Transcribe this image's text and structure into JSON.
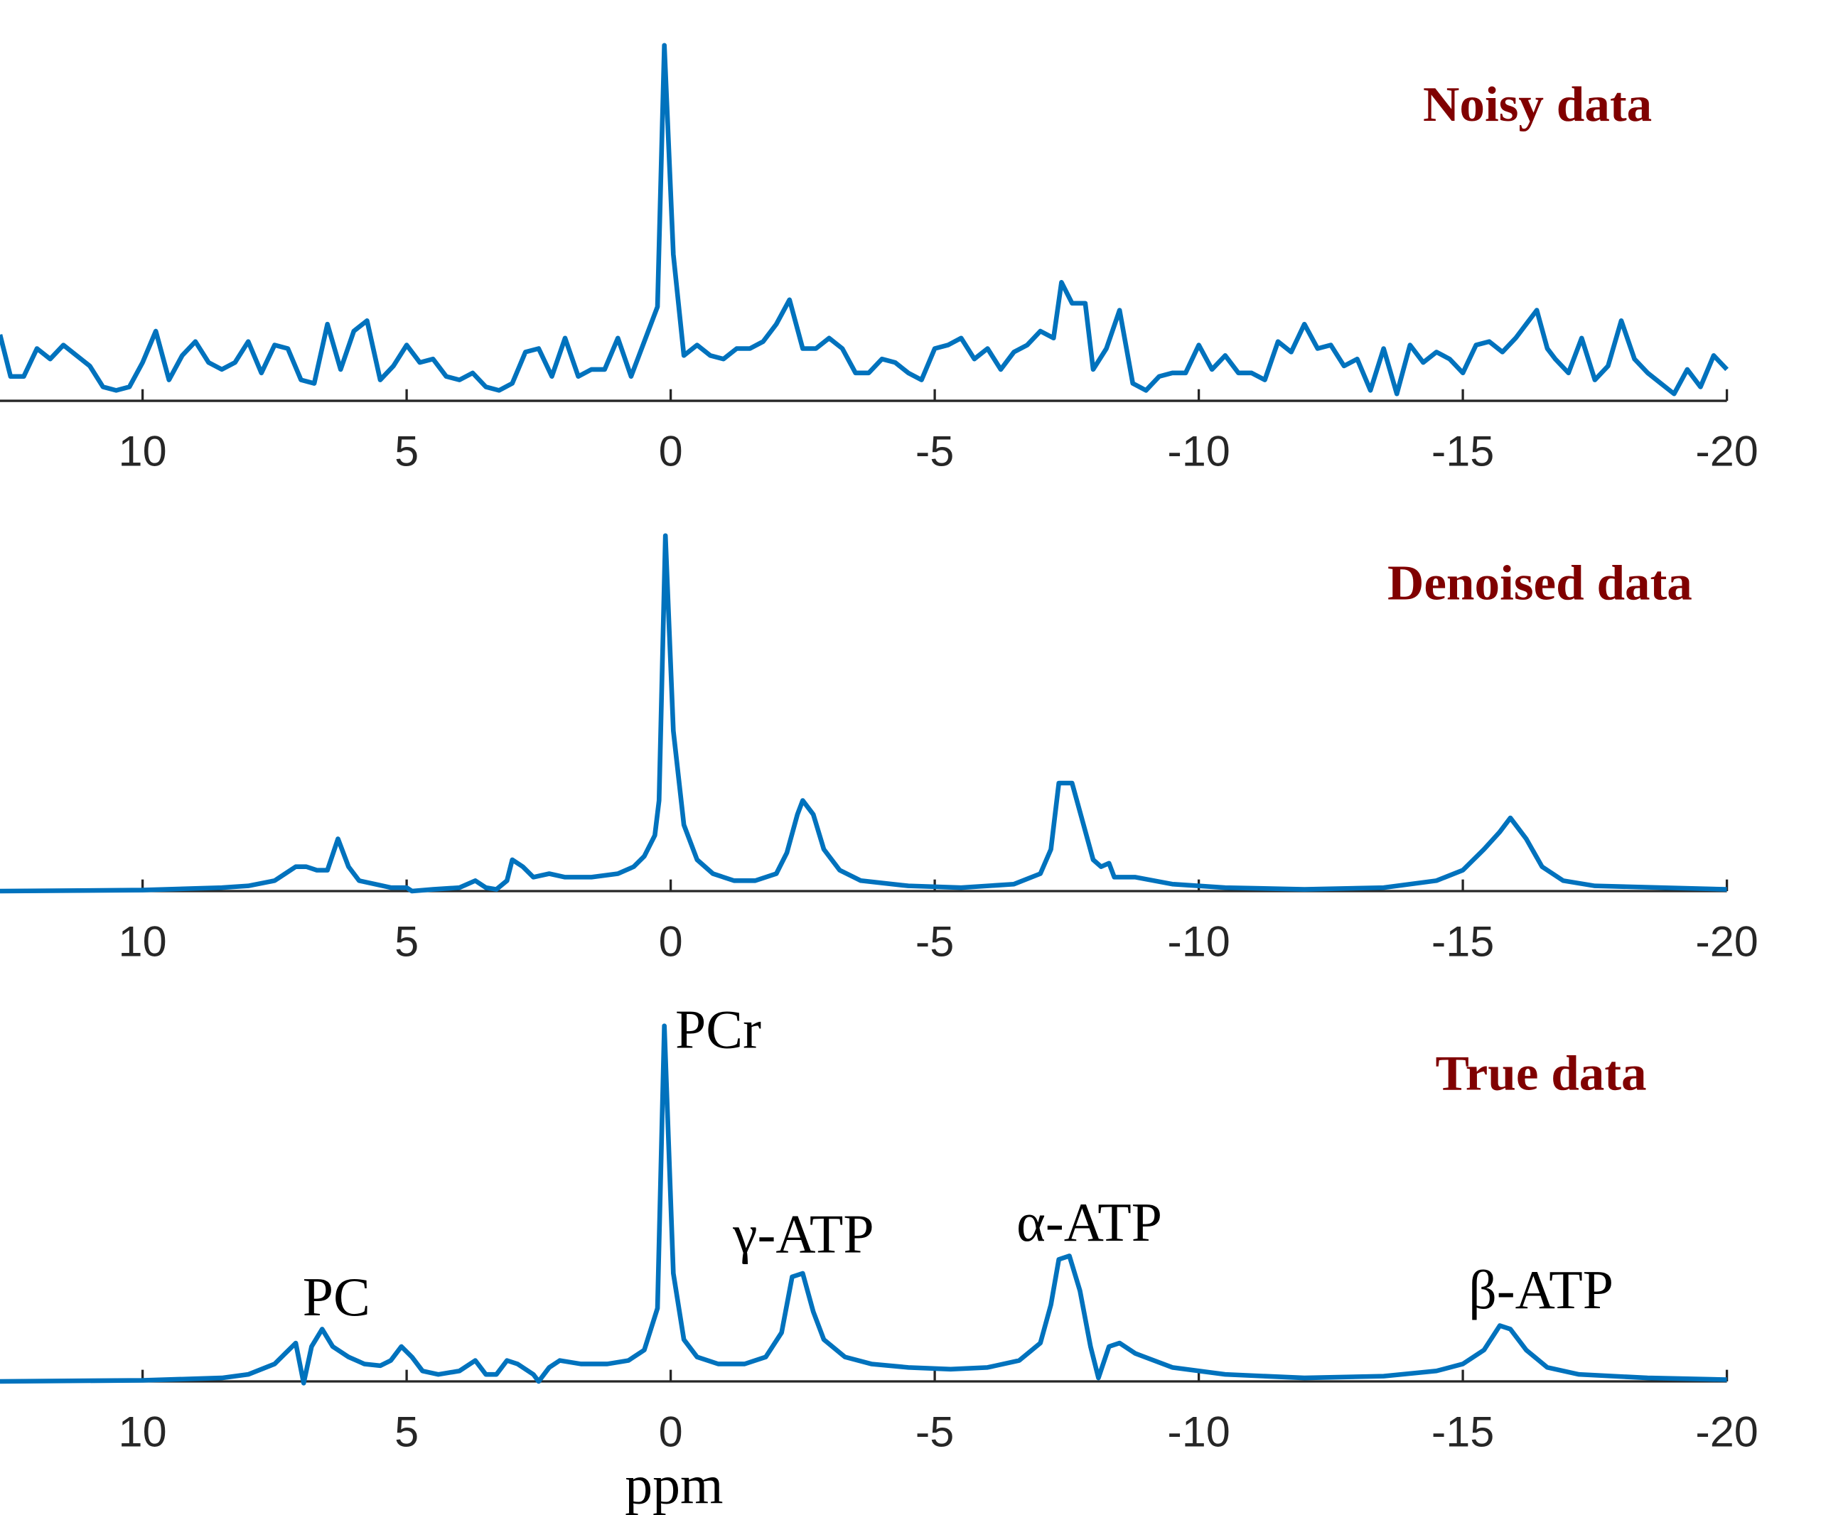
{
  "chart_data": [
    {
      "type": "line",
      "title": "Noisy data",
      "color": "#0072bd",
      "x": [
        12.7,
        12.5,
        12.25,
        12,
        11.75,
        11.5,
        11.25,
        11,
        10.75,
        10.5,
        10.25,
        10,
        9.75,
        9.5,
        9.25,
        9,
        8.75,
        8.5,
        8.25,
        8,
        7.75,
        7.5,
        7.25,
        7,
        6.75,
        6.5,
        6.25,
        6,
        5.75,
        5.5,
        5.25,
        5,
        4.75,
        4.5,
        4.25,
        4,
        3.75,
        3.5,
        3.25,
        3,
        2.75,
        2.5,
        2.25,
        2,
        1.75,
        1.5,
        1.25,
        1,
        0.75,
        0.5,
        0.25,
        0.12,
        -0.05,
        -0.25,
        -0.5,
        -0.75,
        -1,
        -1.25,
        -1.5,
        -1.75,
        -2,
        -2.25,
        -2.5,
        -2.75,
        -3,
        -3.25,
        -3.5,
        -3.75,
        -4,
        -4.25,
        -4.5,
        -4.75,
        -5,
        -5.25,
        -5.5,
        -5.75,
        -6,
        -6.25,
        -6.5,
        -6.75,
        -7,
        -7.25,
        -7.4,
        -7.6,
        -7.85,
        -8,
        -8.25,
        -8.5,
        -8.75,
        -9,
        -9.25,
        -9.5,
        -9.75,
        -10,
        -10.25,
        -10.5,
        -10.75,
        -11,
        -11.25,
        -11.5,
        -11.75,
        -12,
        -12.25,
        -12.5,
        -12.75,
        -13,
        -13.25,
        -13.5,
        -13.75,
        -14,
        -14.25,
        -14.5,
        -14.75,
        -15,
        -15.25,
        -15.5,
        -15.75,
        -16,
        -16.25,
        -16.4,
        -16.6,
        -16.75,
        -17,
        -17.25,
        -17.5,
        -17.75,
        -18,
        -18.25,
        -18.5,
        -18.75,
        -19,
        -19.25,
        -19.5,
        -19.75,
        -20
      ],
      "values": [
        0.19,
        0.07,
        0.07,
        0.15,
        0.12,
        0.16,
        0.13,
        0.1,
        0.04,
        0.03,
        0.04,
        0.11,
        0.2,
        0.06,
        0.13,
        0.17,
        0.11,
        0.09,
        0.11,
        0.17,
        0.08,
        0.16,
        0.15,
        0.06,
        0.05,
        0.22,
        0.09,
        0.2,
        0.23,
        0.06,
        0.1,
        0.16,
        0.11,
        0.12,
        0.07,
        0.06,
        0.08,
        0.04,
        0.03,
        0.05,
        0.14,
        0.15,
        0.07,
        0.18,
        0.07,
        0.09,
        0.09,
        0.18,
        0.07,
        0.17,
        0.27,
        1.02,
        0.42,
        0.13,
        0.16,
        0.13,
        0.12,
        0.15,
        0.15,
        0.17,
        0.22,
        0.29,
        0.15,
        0.15,
        0.18,
        0.15,
        0.08,
        0.08,
        0.12,
        0.11,
        0.08,
        0.06,
        0.15,
        0.16,
        0.18,
        0.12,
        0.15,
        0.09,
        0.14,
        0.16,
        0.2,
        0.18,
        0.34,
        0.28,
        0.28,
        0.09,
        0.15,
        0.26,
        0.05,
        0.03,
        0.07,
        0.08,
        0.08,
        0.16,
        0.09,
        0.13,
        0.08,
        0.08,
        0.06,
        0.17,
        0.14,
        0.22,
        0.15,
        0.16,
        0.1,
        0.12,
        0.03,
        0.15,
        0.02,
        0.16,
        0.11,
        0.14,
        0.12,
        0.08,
        0.16,
        0.17,
        0.14,
        0.18,
        0.23,
        0.26,
        0.15,
        0.12,
        0.08,
        0.18,
        0.06,
        0.1,
        0.23,
        0.12,
        0.08,
        0.05,
        0.02,
        0.09,
        0.04,
        0.13,
        0.09
      ],
      "xlim": [
        12.7,
        -20
      ],
      "xticks": [
        10,
        5,
        0,
        -5,
        -10,
        -15,
        -20
      ],
      "ylim": [
        0,
        1.05
      ]
    },
    {
      "type": "line",
      "title": "Denoised data",
      "color": "#0072bd",
      "x": [
        12.7,
        10,
        8.5,
        8,
        7.5,
        7.3,
        7.1,
        6.9,
        6.7,
        6.5,
        6.3,
        6.1,
        5.9,
        5.6,
        5.3,
        5,
        4.9,
        4.5,
        4,
        3.7,
        3.5,
        3.3,
        3.1,
        3,
        2.8,
        2.6,
        2.3,
        2,
        1.5,
        1,
        0.7,
        0.5,
        0.3,
        0.22,
        0.1,
        -0.05,
        -0.25,
        -0.5,
        -0.8,
        -1.2,
        -1.6,
        -2,
        -2.2,
        -2.4,
        -2.5,
        -2.7,
        -2.9,
        -3.2,
        -3.6,
        -4.5,
        -5.5,
        -6.5,
        -7,
        -7.2,
        -7.35,
        -7.6,
        -7.8,
        -8,
        -8.15,
        -8.3,
        -8.4,
        -8.8,
        -9.5,
        -10.5,
        -12,
        -13.5,
        -14.5,
        -15,
        -15.4,
        -15.7,
        -15.9,
        -16.2,
        -16.5,
        -16.9,
        -17.5,
        -20
      ],
      "values": [
        0,
        0.003,
        0.01,
        0.015,
        0.03,
        0.05,
        0.07,
        0.07,
        0.06,
        0.06,
        0.15,
        0.07,
        0.03,
        0.02,
        0.01,
        0.01,
        0,
        0.005,
        0.01,
        0.03,
        0.01,
        0.005,
        0.03,
        0.09,
        0.07,
        0.04,
        0.05,
        0.04,
        0.04,
        0.05,
        0.07,
        0.1,
        0.16,
        0.26,
        1.02,
        0.46,
        0.19,
        0.09,
        0.05,
        0.03,
        0.03,
        0.05,
        0.11,
        0.22,
        0.26,
        0.22,
        0.12,
        0.06,
        0.03,
        0.015,
        0.01,
        0.02,
        0.05,
        0.12,
        0.31,
        0.31,
        0.2,
        0.09,
        0.07,
        0.08,
        0.04,
        0.04,
        0.02,
        0.01,
        0.005,
        0.01,
        0.03,
        0.06,
        0.12,
        0.17,
        0.21,
        0.15,
        0.07,
        0.03,
        0.015,
        0.005
      ],
      "xlim": [
        12.7,
        -20
      ],
      "xticks": [
        10,
        5,
        0,
        -5,
        -10,
        -15,
        -20
      ],
      "ylim": [
        0,
        1.05
      ]
    },
    {
      "type": "line",
      "title": "True data",
      "color": "#0072bd",
      "x_label": "ppm",
      "annotations": [
        "PCr",
        "PC",
        "γ-ATP",
        "α-ATP",
        "β-ATP"
      ],
      "x": [
        12.7,
        10,
        8.5,
        8,
        7.5,
        7.3,
        7.1,
        6.95,
        6.8,
        6.6,
        6.4,
        6.1,
        5.8,
        5.5,
        5.3,
        5.1,
        4.9,
        4.7,
        4.4,
        4,
        3.7,
        3.5,
        3.3,
        3.1,
        2.9,
        2.6,
        2.5,
        2.3,
        2.1,
        1.7,
        1.2,
        0.8,
        0.5,
        0.25,
        0.12,
        -0.05,
        -0.25,
        -0.5,
        -0.9,
        -1.4,
        -1.8,
        -2.1,
        -2.3,
        -2.5,
        -2.7,
        -2.9,
        -3.3,
        -3.8,
        -4.5,
        -5.3,
        -6,
        -6.6,
        -7,
        -7.2,
        -7.35,
        -7.55,
        -7.75,
        -7.95,
        -8.1,
        -8.3,
        -8.5,
        -8.8,
        -9.5,
        -10.5,
        -12,
        -13.5,
        -14.5,
        -15,
        -15.4,
        -15.7,
        -15.9,
        -16.2,
        -16.6,
        -17.2,
        -18.5,
        -20
      ],
      "values": [
        0,
        0.003,
        0.01,
        0.02,
        0.05,
        0.08,
        0.11,
        -0.005,
        0.1,
        0.15,
        0.1,
        0.07,
        0.05,
        0.045,
        0.06,
        0.1,
        0.07,
        0.03,
        0.02,
        0.03,
        0.06,
        0.02,
        0.02,
        0.06,
        0.05,
        0.02,
        0,
        0.04,
        0.06,
        0.05,
        0.05,
        0.06,
        0.09,
        0.21,
        1.02,
        0.31,
        0.12,
        0.07,
        0.05,
        0.05,
        0.07,
        0.14,
        0.3,
        0.31,
        0.2,
        0.12,
        0.07,
        0.05,
        0.04,
        0.035,
        0.04,
        0.06,
        0.11,
        0.22,
        0.35,
        0.36,
        0.26,
        0.1,
        0.01,
        0.1,
        0.11,
        0.08,
        0.04,
        0.02,
        0.01,
        0.015,
        0.03,
        0.05,
        0.09,
        0.16,
        0.15,
        0.09,
        0.04,
        0.02,
        0.01,
        0.005
      ],
      "xlim": [
        12.7,
        -20
      ],
      "xticks": [
        10,
        5,
        0,
        -5,
        -10,
        -15,
        -20
      ],
      "ylim": [
        0,
        1.05
      ]
    }
  ]
}
